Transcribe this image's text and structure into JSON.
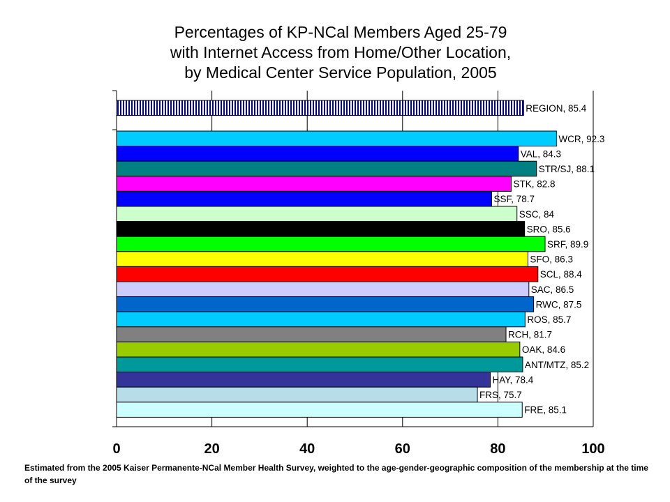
{
  "title_lines": [
    "Percentages of KP-NCal Members Aged 25-79",
    "with Internet Access from Home/Other Location,",
    "by Medical Center Service Population, 2005"
  ],
  "footnote": "Estimated  from the 2005 Kaiser Permanente-NCal Member Health Survey, weighted to the age-gender-geographic composition of the membership at the time of the survey",
  "chart_data": {
    "type": "bar",
    "orientation": "horizontal",
    "xlim": [
      0,
      100
    ],
    "xticks": [
      0,
      20,
      40,
      60,
      80,
      100
    ],
    "grid": "vertical",
    "bars": [
      {
        "category": "REGION",
        "value": 85.4,
        "label": "REGION, 85.4",
        "color": "#0000a0",
        "pattern": "vertical-stripes"
      },
      {
        "category": "WCR",
        "value": 92.3,
        "label": "WCR, 92.3",
        "color": "#00ccff"
      },
      {
        "category": "VAL",
        "value": 84.3,
        "label": "VAL, 84.3",
        "color": "#0000ff"
      },
      {
        "category": "STR/SJ",
        "value": 88.1,
        "label": "STR/SJ, 88.1",
        "color": "#008080"
      },
      {
        "category": "STK",
        "value": 82.8,
        "label": "STK, 82.8",
        "color": "#ff00ff"
      },
      {
        "category": "SSF",
        "value": 78.7,
        "label": "SSF, 78.7",
        "color": "#0000ff"
      },
      {
        "category": "SSC",
        "value": 84,
        "label": "SSC, 84",
        "color": "#ccffcc"
      },
      {
        "category": "SRO",
        "value": 85.6,
        "label": "SRO, 85.6",
        "color": "#000000"
      },
      {
        "category": "SRF",
        "value": 89.9,
        "label": "SRF, 89.9",
        "color": "#00ff00"
      },
      {
        "category": "SFO",
        "value": 86.3,
        "label": "SFO, 86.3",
        "color": "#ffff00"
      },
      {
        "category": "SCL",
        "value": 88.4,
        "label": "SCL, 88.4",
        "color": "#ff0000"
      },
      {
        "category": "SAC",
        "value": 86.5,
        "label": "SAC, 86.5",
        "color": "#ccccff"
      },
      {
        "category": "RWC",
        "value": 87.5,
        "label": "RWC, 87.5",
        "color": "#0066cc"
      },
      {
        "category": "ROS",
        "value": 85.7,
        "label": "ROS, 85.7",
        "color": "#00ccff"
      },
      {
        "category": "RCH",
        "value": 81.7,
        "label": "RCH, 81.7",
        "color": "#808080"
      },
      {
        "category": "OAK",
        "value": 84.6,
        "label": "OAK, 84.6",
        "color": "#99cc00"
      },
      {
        "category": "ANT/MTZ",
        "value": 85.2,
        "label": "ANT/MTZ, 85.2",
        "color": "#009999"
      },
      {
        "category": "HAY",
        "value": 78.4,
        "label": "HAY, 78.4",
        "color": "#333399"
      },
      {
        "category": "FRS",
        "value": 75.7,
        "label": "FRS, 75.7",
        "color": "#b7dee8"
      },
      {
        "category": "FRE",
        "value": 85.1,
        "label": "FRE, 85.1",
        "color": "#ccffff"
      }
    ]
  }
}
